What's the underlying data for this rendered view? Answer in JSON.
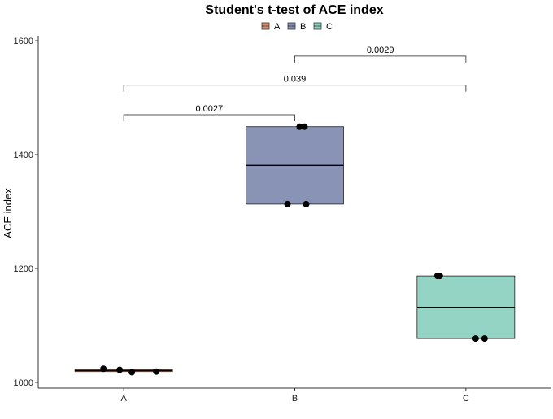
{
  "chart_data": {
    "type": "box",
    "title": "Student's t-test of ACE index",
    "xlabel": "",
    "ylabel": "ACE index",
    "ylim": [
      990,
      1610
    ],
    "yticks": [
      1000,
      1200,
      1400,
      1600
    ],
    "categories": [
      "A",
      "B",
      "C"
    ],
    "legend": {
      "placement": "top",
      "entries": [
        "A",
        "B",
        "C"
      ]
    },
    "colors": {
      "A": "#D9957A",
      "B": "#8893B5",
      "C": "#93D4C4"
    },
    "boxes": [
      {
        "group": "A",
        "q1": 1019,
        "median": 1021,
        "q3": 1023,
        "points": [
          1024,
          1022,
          1018,
          1019
        ]
      },
      {
        "group": "B",
        "q1": 1313,
        "median": 1381,
        "q3": 1449,
        "points": [
          1449,
          1449,
          1313,
          1313
        ]
      },
      {
        "group": "C",
        "q1": 1077,
        "median": 1132,
        "q3": 1187,
        "points": [
          1187,
          1187,
          1077,
          1077
        ]
      }
    ],
    "comparisons": [
      {
        "from": "A",
        "to": "B",
        "label": "0.0027",
        "y": 1470
      },
      {
        "from": "A",
        "to": "C",
        "label": "0.039",
        "y": 1522
      },
      {
        "from": "B",
        "to": "C",
        "label": "0.0029",
        "y": 1573
      }
    ]
  }
}
